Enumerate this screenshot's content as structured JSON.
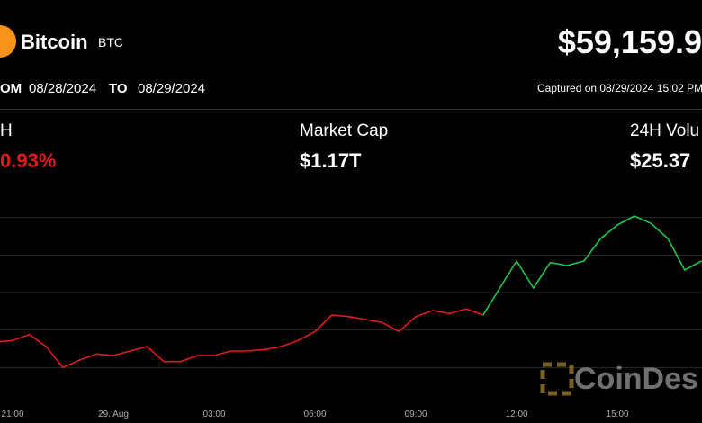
{
  "header": {
    "name": "Bitcoin",
    "symbol": "BTC",
    "price": "$59,159.9",
    "from_label": "OM",
    "from_date": "08/28/2024",
    "to_label": "TO",
    "to_date": "08/29/2024",
    "captured": "Captured on 08/29/2024 15:02 PM"
  },
  "stats": [
    {
      "label": "H",
      "value": "0.93%"
    },
    {
      "label": "Market Cap",
      "value": "$1.17T"
    },
    {
      "label": "24H Volu",
      "value": "$25.37"
    }
  ],
  "watermark": "CoinDes",
  "chart_data": {
    "type": "line",
    "categories": [
      null,
      "21:00",
      null,
      null,
      null,
      null,
      null,
      "29. Aug",
      null,
      null,
      null,
      null,
      null,
      "03:00",
      null,
      null,
      null,
      null,
      null,
      "06:00",
      null,
      null,
      null,
      null,
      null,
      "09:00",
      null,
      null,
      null,
      null,
      null,
      "12:00",
      null,
      null,
      null,
      null,
      null,
      "15:00",
      null,
      null,
      null,
      null,
      null
    ],
    "series": [
      {
        "color": "#e01b1b",
        "values": [
          58840,
          58860,
          58940,
          58780,
          58500,
          58600,
          58680,
          58660,
          58720,
          58780,
          58580,
          58580,
          58660,
          58660,
          58720,
          58720,
          58740,
          58780,
          58860,
          58980,
          59200,
          59180,
          59140,
          59100,
          58980,
          59180,
          59260,
          59220,
          59280,
          59200,
          null,
          null,
          null,
          null,
          null,
          null,
          null,
          null,
          null,
          null,
          null,
          null,
          null
        ]
      },
      {
        "color": "#1ec84a",
        "values": [
          null,
          null,
          null,
          null,
          null,
          null,
          null,
          null,
          null,
          null,
          null,
          null,
          null,
          null,
          null,
          null,
          null,
          null,
          null,
          null,
          null,
          null,
          null,
          null,
          null,
          null,
          null,
          null,
          null,
          59200,
          59560,
          59920,
          59560,
          59900,
          59860,
          59920,
          60220,
          60400,
          60520,
          60420,
          60220,
          59800,
          59920
        ]
      }
    ],
    "ylim": [
      58000,
      61000
    ],
    "yticks": [
      58500,
      59000,
      59500,
      60000,
      60500
    ],
    "grid": true
  }
}
